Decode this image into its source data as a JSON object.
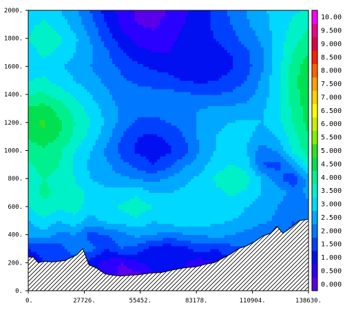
{
  "chart_data": {
    "type": "heatmap",
    "title": "",
    "xlabel": "",
    "ylabel": "",
    "xlim": [
      0,
      138630
    ],
    "ylim": [
      0,
      2000
    ],
    "x_ticks": [
      {
        "value": 0,
        "label": "0."
      },
      {
        "value": 27726,
        "label": "27726."
      },
      {
        "value": 55452,
        "label": "55452."
      },
      {
        "value": 83178,
        "label": "83178."
      },
      {
        "value": 110904,
        "label": "110904."
      },
      {
        "value": 138630,
        "label": "138630."
      }
    ],
    "y_ticks": [
      {
        "value": 0,
        "label": "0."
      },
      {
        "value": 200,
        "label": "200."
      },
      {
        "value": 400,
        "label": "400."
      },
      {
        "value": 600,
        "label": "600."
      },
      {
        "value": 800,
        "label": "800."
      },
      {
        "value": 1000,
        "label": "1000."
      },
      {
        "value": 1200,
        "label": "1200."
      },
      {
        "value": 1400,
        "label": "1400."
      },
      {
        "value": 1600,
        "label": "1600."
      },
      {
        "value": 1800,
        "label": "1800."
      },
      {
        "value": 2000,
        "label": "2000."
      }
    ],
    "colorbar": {
      "min": 0,
      "max": 10.5,
      "step": 0.5,
      "labels": [
        "0.000",
        "0.500",
        "1.000",
        "1.500",
        "2.000",
        "2.500",
        "3.000",
        "3.500",
        "4.000",
        "4.500",
        "5.000",
        "5.500",
        "6.000",
        "6.500",
        "7.000",
        "7.500",
        "8.000",
        "8.500",
        "9.000",
        "9.500",
        "10.00"
      ],
      "colors": [
        "#5a00e8",
        "#2a00ff",
        "#0010f0",
        "#0040ff",
        "#0078ff",
        "#00a8ff",
        "#00d8ff",
        "#00f0c8",
        "#00f090",
        "#00e050",
        "#30e020",
        "#80f000",
        "#c8f000",
        "#ffff00",
        "#ffd000",
        "#ffa000",
        "#ff6000",
        "#ff2000",
        "#e00040",
        "#f0008c",
        "#ff00ff"
      ]
    },
    "terrain": {
      "x": [
        0,
        2500,
        5000,
        8000,
        12000,
        18000,
        24000,
        27000,
        30000,
        34000,
        38000,
        42000,
        46000,
        50000,
        55000,
        60000,
        66000,
        72000,
        78000,
        83000,
        88000,
        92000,
        96000,
        100000,
        104000,
        108000,
        112000,
        116000,
        120000,
        123000,
        126000,
        130000,
        134000,
        138630
      ],
      "y": [
        240,
        240,
        200,
        210,
        205,
        215,
        255,
        300,
        185,
        160,
        120,
        110,
        105,
        110,
        115,
        125,
        130,
        150,
        165,
        170,
        190,
        200,
        230,
        260,
        300,
        320,
        350,
        390,
        410,
        460,
        410,
        450,
        500,
        510
      ]
    },
    "field": {
      "x": [
        0,
        7703,
        15405,
        23108,
        30810,
        38513,
        46215,
        53918,
        61620,
        69323,
        77025,
        84728,
        92430,
        100133,
        107835,
        115538,
        123240,
        130943,
        138630
      ],
      "y": [
        0,
        100,
        200,
        300,
        400,
        500,
        600,
        700,
        800,
        900,
        1000,
        1100,
        1200,
        1300,
        1400,
        1500,
        1600,
        1700,
        1800,
        1900,
        2000
      ],
      "values": [
        [
          1.5,
          1.5,
          1.5,
          1.5,
          1.2,
          1.0,
          0.8,
          0.8,
          1.0,
          1.2,
          1.2,
          1.5,
          1.5,
          1.5,
          1.5,
          1.5,
          1.5,
          1.5,
          1.5
        ],
        [
          1.5,
          1.5,
          1.5,
          1.5,
          1.2,
          0.8,
          0.3,
          0.2,
          0.8,
          1.0,
          0.9,
          0.4,
          1.2,
          1.5,
          1.5,
          1.5,
          1.5,
          1.5,
          1.5
        ],
        [
          1.2,
          1.5,
          1.5,
          1.8,
          1.2,
          0.8,
          0.5,
          0.9,
          1.2,
          1.3,
          1.1,
          0.6,
          1.0,
          1.4,
          1.5,
          1.5,
          1.5,
          1.5,
          1.5
        ],
        [
          1.5,
          1.6,
          1.8,
          2.2,
          2.2,
          1.5,
          2.0,
          1.8,
          1.2,
          1.1,
          1.3,
          1.8,
          1.5,
          1.8,
          2.0,
          2.0,
          1.9,
          1.8,
          2.0
        ],
        [
          2.6,
          2.8,
          2.3,
          2.5,
          1.8,
          2.0,
          2.3,
          2.6,
          2.5,
          2.3,
          2.4,
          2.5,
          2.7,
          2.5,
          2.3,
          2.0,
          2.1,
          1.8,
          2.2
        ],
        [
          3.0,
          3.4,
          3.0,
          3.3,
          2.8,
          3.1,
          3.2,
          3.4,
          3.0,
          3.2,
          3.5,
          3.3,
          3.1,
          3.0,
          2.9,
          2.6,
          2.4,
          2.0,
          2.5
        ],
        [
          3.5,
          3.9,
          3.6,
          3.8,
          3.2,
          3.4,
          3.6,
          3.8,
          3.5,
          3.3,
          3.4,
          3.5,
          3.3,
          3.2,
          3.0,
          2.8,
          2.5,
          2.0,
          2.4
        ],
        [
          3.8,
          4.1,
          3.9,
          3.7,
          3.4,
          3.1,
          3.2,
          3.4,
          3.0,
          3.0,
          3.1,
          3.2,
          3.3,
          3.6,
          3.4,
          3.0,
          2.8,
          2.3,
          2.6
        ],
        [
          3.8,
          4.0,
          3.9,
          3.5,
          3.0,
          2.8,
          2.6,
          2.5,
          2.3,
          2.6,
          2.9,
          3.1,
          3.6,
          4.0,
          3.7,
          3.0,
          2.2,
          1.6,
          2.8
        ],
        [
          3.9,
          4.2,
          4.0,
          3.4,
          2.9,
          2.6,
          2.2,
          1.8,
          1.5,
          1.8,
          2.4,
          2.8,
          3.2,
          3.5,
          3.3,
          2.0,
          1.8,
          2.6,
          3.8
        ],
        [
          4.2,
          4.4,
          4.1,
          3.5,
          3.0,
          2.4,
          1.8,
          1.4,
          1.3,
          1.4,
          1.7,
          2.5,
          3.0,
          3.2,
          3.0,
          2.2,
          2.6,
          3.6,
          4.2
        ],
        [
          4.6,
          4.8,
          4.5,
          3.9,
          3.3,
          2.7,
          2.0,
          1.5,
          1.4,
          1.6,
          2.0,
          2.6,
          3.0,
          3.2,
          3.1,
          2.8,
          3.0,
          3.8,
          4.5
        ],
        [
          4.9,
          5.1,
          4.6,
          4.0,
          3.5,
          2.9,
          2.3,
          1.9,
          1.8,
          2.0,
          2.2,
          2.6,
          2.9,
          3.0,
          3.1,
          3.0,
          3.3,
          4.0,
          4.7
        ],
        [
          4.6,
          4.7,
          4.3,
          3.8,
          3.3,
          2.8,
          2.4,
          2.2,
          2.2,
          2.3,
          2.4,
          2.5,
          2.6,
          2.6,
          2.7,
          2.9,
          3.4,
          4.1,
          4.8
        ],
        [
          4.0,
          4.1,
          3.8,
          3.4,
          3.0,
          2.6,
          2.3,
          2.2,
          2.2,
          2.2,
          2.1,
          2.0,
          2.0,
          2.1,
          2.3,
          2.7,
          3.4,
          4.2,
          4.9
        ],
        [
          3.5,
          3.6,
          3.3,
          3.0,
          2.7,
          2.4,
          2.1,
          1.9,
          1.8,
          1.7,
          1.5,
          1.4,
          1.5,
          1.7,
          2.0,
          2.6,
          3.4,
          4.3,
          5.0
        ],
        [
          3.2,
          3.3,
          3.1,
          2.8,
          2.5,
          2.2,
          1.9,
          1.6,
          1.4,
          1.3,
          1.1,
          1.0,
          1.2,
          1.4,
          1.8,
          2.4,
          3.3,
          4.2,
          4.8
        ],
        [
          3.3,
          3.6,
          3.4,
          3.0,
          2.6,
          2.1,
          1.6,
          1.2,
          1.0,
          1.0,
          1.1,
          1.2,
          1.3,
          1.5,
          1.9,
          2.4,
          3.2,
          4.0,
          4.5
        ],
        [
          3.5,
          3.8,
          3.6,
          3.1,
          2.5,
          1.8,
          1.2,
          0.8,
          0.7,
          0.9,
          1.1,
          1.3,
          1.5,
          1.8,
          2.2,
          2.6,
          3.2,
          3.8,
          4.2
        ],
        [
          3.4,
          3.6,
          3.3,
          2.8,
          2.2,
          1.5,
          0.9,
          0.5,
          0.4,
          0.7,
          1.0,
          1.3,
          1.6,
          2.0,
          2.4,
          2.8,
          3.2,
          3.6,
          3.9
        ],
        [
          3.2,
          3.3,
          3.0,
          2.6,
          2.0,
          1.3,
          0.8,
          0.4,
          0.3,
          0.5,
          0.9,
          1.2,
          1.6,
          2.1,
          2.5,
          2.9,
          3.2,
          3.4,
          3.6
        ]
      ]
    }
  }
}
